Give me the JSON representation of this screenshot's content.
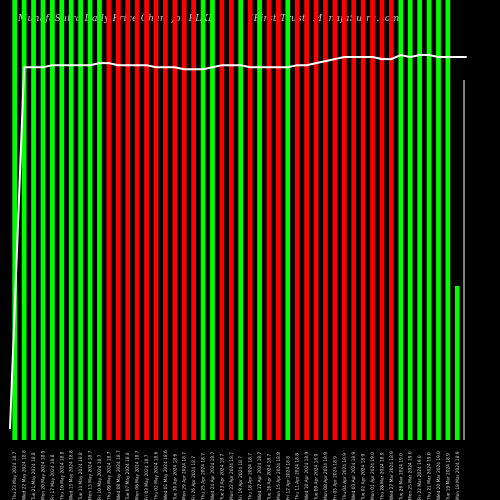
{
  "header": {
    "left": "MunafaSutra Daily Price Chart for FLXP",
    "right": "(First Trust) MunafaSutra.com"
  },
  "chart_data": {
    "type": "bar",
    "title": "MunafaSutra Daily Price Chart for FLXP",
    "colors": {
      "up": "#00ff00",
      "down": "#ff0000",
      "line": "#ffffff",
      "axis": "#ffffff",
      "background": "#000000"
    },
    "bars": [
      {
        "x": "Thu 23 May 2024 18.7",
        "dir": "up",
        "h": 1.0
      },
      {
        "x": "Wed 22 May 2024 18.8",
        "dir": "up",
        "h": 1.0
      },
      {
        "x": "Tue 21 May 2024 18.8",
        "dir": "up",
        "h": 1.0
      },
      {
        "x": "Mon 20 May 2024 18.9",
        "dir": "up",
        "h": 1.0
      },
      {
        "x": "Fri 17 May 2024 18.8",
        "dir": "up",
        "h": 1.0
      },
      {
        "x": "Thu 16 May 2024 18.8",
        "dir": "up",
        "h": 1.0
      },
      {
        "x": "Wed 15 May 2024 18.8",
        "dir": "up",
        "h": 1.0
      },
      {
        "x": "Tue 14 May 2024 18.8",
        "dir": "up",
        "h": 1.0
      },
      {
        "x": "Mon 13 May 2024 18.7",
        "dir": "up",
        "h": 1.0
      },
      {
        "x": "Fri 10 May 2024 18.7",
        "dir": "up",
        "h": 1.0
      },
      {
        "x": "Thu 09 May 2024 18.7",
        "dir": "down",
        "h": 1.0
      },
      {
        "x": "Wed 08 May 2024 18.7",
        "dir": "down",
        "h": 1.0
      },
      {
        "x": "Tue 07 May 2024 18.8",
        "dir": "down",
        "h": 1.0
      },
      {
        "x": "Mon 06 May 2024 18.7",
        "dir": "down",
        "h": 1.0
      },
      {
        "x": "Fri 03 May 2024 18.7",
        "dir": "down",
        "h": 1.0
      },
      {
        "x": "Thu 02 May 2024 18.6",
        "dir": "down",
        "h": 1.0
      },
      {
        "x": "Wed 01 May 2024 18.6",
        "dir": "down",
        "h": 1.0
      },
      {
        "x": "Tue 30 Apr 2024 18.6",
        "dir": "down",
        "h": 1.0
      },
      {
        "x": "Mon 29 Apr 2024 18.7",
        "dir": "down",
        "h": 1.0
      },
      {
        "x": "Fri 26 Apr 2024 18.7",
        "dir": "down",
        "h": 1.0
      },
      {
        "x": "Thu 25 Apr 2024 18.7",
        "dir": "up",
        "h": 1.0
      },
      {
        "x": "Wed 24 Apr 2024 18.7",
        "dir": "up",
        "h": 1.0
      },
      {
        "x": "Tue 23 Apr 2024 18.7",
        "dir": "down",
        "h": 1.0
      },
      {
        "x": "Mon 22 Apr 2024 18.7",
        "dir": "down",
        "h": 1.0
      },
      {
        "x": "Fri 19 Apr 2024 18.7",
        "dir": "up",
        "h": 1.0
      },
      {
        "x": "Thu 18 Apr 2024 18.7",
        "dir": "down",
        "h": 1.0
      },
      {
        "x": "Wed 17 Apr 2024 18.7",
        "dir": "up",
        "h": 1.0
      },
      {
        "x": "Tue 16 Apr 2024 18.7",
        "dir": "down",
        "h": 1.0
      },
      {
        "x": "Mon 15 Apr 2024 18.8",
        "dir": "down",
        "h": 1.0
      },
      {
        "x": "Fri 12 Apr 2024 18.8",
        "dir": "up",
        "h": 1.0
      },
      {
        "x": "Thu 11 Apr 2024 18.8",
        "dir": "down",
        "h": 1.0
      },
      {
        "x": "Wed 10 Apr 2024 18.9",
        "dir": "down",
        "h": 1.0
      },
      {
        "x": "Tue 09 Apr 2024 18.9",
        "dir": "down",
        "h": 1.0
      },
      {
        "x": "Mon 08 Apr 2024 18.9",
        "dir": "down",
        "h": 1.0
      },
      {
        "x": "Fri 05 Apr 2024 18.9",
        "dir": "down",
        "h": 1.0
      },
      {
        "x": "Thu 04 Apr 2024 18.9",
        "dir": "down",
        "h": 1.0
      },
      {
        "x": "Wed 03 Apr 2024 18.9",
        "dir": "down",
        "h": 1.0
      },
      {
        "x": "Tue 02 Apr 2024 18.9",
        "dir": "down",
        "h": 1.0
      },
      {
        "x": "Mon 01 Apr 2024 19.0",
        "dir": "down",
        "h": 1.0
      },
      {
        "x": "Thu 28 Mar 2024 18.9",
        "dir": "down",
        "h": 1.0
      },
      {
        "x": "Wed 27 Mar 2024 18.9",
        "dir": "down",
        "h": 1.0
      },
      {
        "x": "Tue 26 Mar 2024 19.0",
        "dir": "up",
        "h": 1.0
      },
      {
        "x": "Mon 25 Mar 2024 19.0",
        "dir": "up",
        "h": 1.0
      },
      {
        "x": "Fri 22 Mar 2024 19.0",
        "dir": "up",
        "h": 1.0
      },
      {
        "x": "Thu 21 Mar 2024 19.0",
        "dir": "up",
        "h": 1.0
      },
      {
        "x": "Wed 20 Mar 2024 19.0",
        "dir": "up",
        "h": 1.0
      },
      {
        "x": "Tue 19 Mar 2024 18.9",
        "dir": "up",
        "h": 1.0
      },
      {
        "x": "Mon 18 Mar 2024 18.9",
        "dir": "up",
        "h": 0.35
      }
    ],
    "line": [
      0.55,
      18.3,
      18.3,
      18.3,
      18.4,
      18.4,
      18.4,
      18.4,
      18.4,
      18.5,
      18.5,
      18.4,
      18.4,
      18.4,
      18.4,
      18.3,
      18.3,
      18.3,
      18.2,
      18.2,
      18.2,
      18.3,
      18.4,
      18.4,
      18.4,
      18.3,
      18.3,
      18.3,
      18.3,
      18.3,
      18.4,
      18.4,
      18.5,
      18.6,
      18.7,
      18.8,
      18.8,
      18.8,
      18.8,
      18.7,
      18.7,
      18.9,
      18.8,
      18.9,
      18.9,
      18.8,
      18.8,
      18.8,
      18.8
    ],
    "line_ylim": [
      0,
      21.6
    ]
  }
}
